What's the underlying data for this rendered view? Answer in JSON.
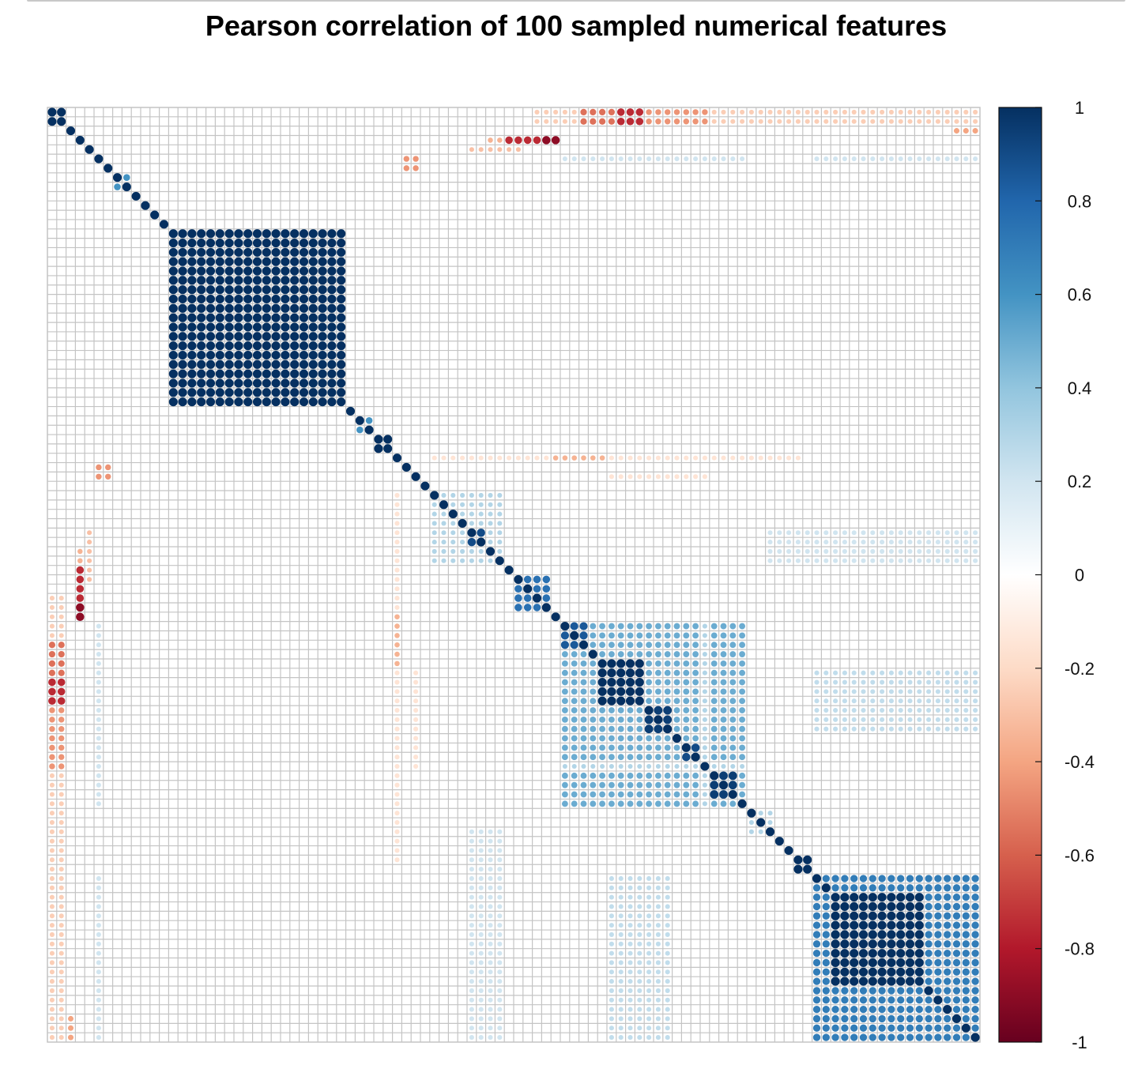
{
  "chart_data": {
    "type": "heatmap",
    "subtype": "correlation-matrix-circles",
    "title": "Pearson correlation of 100 sampled numerical features",
    "n_features": 100,
    "diagonal_value": 1,
    "colorbar": {
      "range": [
        -1,
        1
      ],
      "ticks": [
        "1",
        "0.8",
        "0.6",
        "0.4",
        "0.2",
        "0",
        "-0.2",
        "-0.4",
        "-0.6",
        "-0.8",
        "-1"
      ],
      "colors": {
        "-1": "#67001f",
        "-0.8": "#b2182b",
        "-0.6": "#d6604d",
        "-0.4": "#f4a582",
        "-0.2": "#fddbc7",
        "0": "#ffffff",
        "0.2": "#d1e5f0",
        "0.4": "#92c5de",
        "0.6": "#4393c3",
        "0.8": "#2166ac",
        "1": "#053061"
      }
    },
    "grid": true,
    "legend_position": "right",
    "blocks": [
      {
        "rows": [
          0,
          1
        ],
        "cols": [
          0,
          1
        ],
        "value": 1.0
      },
      {
        "rows": [
          7,
          8
        ],
        "cols": [
          7,
          8
        ],
        "value": 0.6
      },
      {
        "rows": [
          13,
          31
        ],
        "cols": [
          13,
          31
        ],
        "value": 1.0
      },
      {
        "rows": [
          33,
          34
        ],
        "cols": [
          33,
          34
        ],
        "value": 0.6
      },
      {
        "rows": [
          35,
          36
        ],
        "cols": [
          35,
          36
        ],
        "value": 1.0
      },
      {
        "rows": [
          43,
          44
        ],
        "cols": [
          43,
          44
        ],
        "value": 1.0
      },
      {
        "rows": [
          41,
          48
        ],
        "cols": [
          41,
          48
        ],
        "value": 0.3
      },
      {
        "rows": [
          45,
          46
        ],
        "cols": [
          45,
          46
        ],
        "value": 0.9
      },
      {
        "rows": [
          50,
          53
        ],
        "cols": [
          50,
          53
        ],
        "value": 0.75
      },
      {
        "rows": [
          55,
          74
        ],
        "cols": [
          55,
          74
        ],
        "value": 0.5
      },
      {
        "rows": [
          55,
          57
        ],
        "cols": [
          55,
          57
        ],
        "value": 0.85
      },
      {
        "rows": [
          59,
          63
        ],
        "cols": [
          59,
          63
        ],
        "value": 1.0
      },
      {
        "rows": [
          64,
          66
        ],
        "cols": [
          64,
          66
        ],
        "value": 0.95
      },
      {
        "rows": [
          68,
          69
        ],
        "cols": [
          68,
          69
        ],
        "value": 0.9
      },
      {
        "rows": [
          71,
          73
        ],
        "cols": [
          71,
          73
        ],
        "value": 0.95
      },
      {
        "rows": [
          75,
          77
        ],
        "cols": [
          75,
          77
        ],
        "value": 0.3
      },
      {
        "rows": [
          80,
          81
        ],
        "cols": [
          80,
          81
        ],
        "value": 1.0
      },
      {
        "rows": [
          82,
          99
        ],
        "cols": [
          82,
          99
        ],
        "value": 0.7
      },
      {
        "rows": [
          84,
          93
        ],
        "cols": [
          84,
          93
        ],
        "value": 1.0
      }
    ],
    "off_diagonal": [
      {
        "rows": [
          0,
          1
        ],
        "cols": [
          55,
          74
        ],
        "value": -0.3
      },
      {
        "rows": [
          0,
          1
        ],
        "cols": [
          64,
          66
        ],
        "value": -0.65
      },
      {
        "rows": [
          0,
          1
        ],
        "cols": [
          72,
          74
        ],
        "value": -0.5
      },
      {
        "rows": [
          0,
          1
        ],
        "cols": [
          79,
          82
        ],
        "value": -0.2
      },
      {
        "rows": [
          0,
          1
        ],
        "cols": [
          84,
          99
        ],
        "value": -0.15
      },
      {
        "rows": [
          2,
          2
        ],
        "cols": [
          97,
          99
        ],
        "value": -0.4
      },
      {
        "rows": [
          3,
          3
        ],
        "cols": [
          47,
          49
        ],
        "value": -0.35
      },
      {
        "rows": [
          3,
          3
        ],
        "cols": [
          51,
          54
        ],
        "value": -0.9
      },
      {
        "rows": [
          4,
          4
        ],
        "cols": [
          45,
          50
        ],
        "value": -0.3
      },
      {
        "rows": [
          5,
          5
        ],
        "cols": [
          55,
          74
        ],
        "value": 0.2
      },
      {
        "rows": [
          5,
          5
        ],
        "cols": [
          84,
          99
        ],
        "value": 0.2
      },
      {
        "rows": [
          5,
          6
        ],
        "cols": [
          38,
          38
        ],
        "value": -0.45
      },
      {
        "rows": [
          37,
          37
        ],
        "cols": [
          41,
          80
        ],
        "value": -0.15
      },
      {
        "rows": [
          37,
          37
        ],
        "cols": [
          54,
          59
        ],
        "value": -0.35
      },
      {
        "rows": [
          39,
          39
        ],
        "cols": [
          5,
          6
        ],
        "value": -0.45
      },
      {
        "rows": [
          39,
          39
        ],
        "cols": [
          60,
          70
        ],
        "value": -0.15
      },
      {
        "rows": [
          45,
          48
        ],
        "cols": [
          77,
          99
        ],
        "value": 0.2
      },
      {
        "rows": [
          49,
          52
        ],
        "cols": [
          3,
          3
        ],
        "value": -0.75
      },
      {
        "rows": [
          52,
          99
        ],
        "cols": [
          0,
          1
        ],
        "value": -0.25
      },
      {
        "rows": [
          57,
          63
        ],
        "cols": [
          0,
          1
        ],
        "value": -0.55
      },
      {
        "rows": [
          61,
          63
        ],
        "cols": [
          0,
          1
        ],
        "value": -0.75
      },
      {
        "rows": [
          64,
          70
        ],
        "cols": [
          0,
          1
        ],
        "value": -0.45
      },
      {
        "rows": [
          70,
          70
        ],
        "cols": [
          55,
          74
        ],
        "value": 0.3
      },
      {
        "rows": [
          82,
          99
        ],
        "cols": [
          45,
          48
        ],
        "value": 0.2
      },
      {
        "rows": [
          82,
          99
        ],
        "cols": [
          60,
          66
        ],
        "value": 0.25
      },
      {
        "rows": [
          82,
          99
        ],
        "cols": [
          5,
          5
        ],
        "value": 0.2
      }
    ],
    "xlabel": "",
    "ylabel": ""
  }
}
